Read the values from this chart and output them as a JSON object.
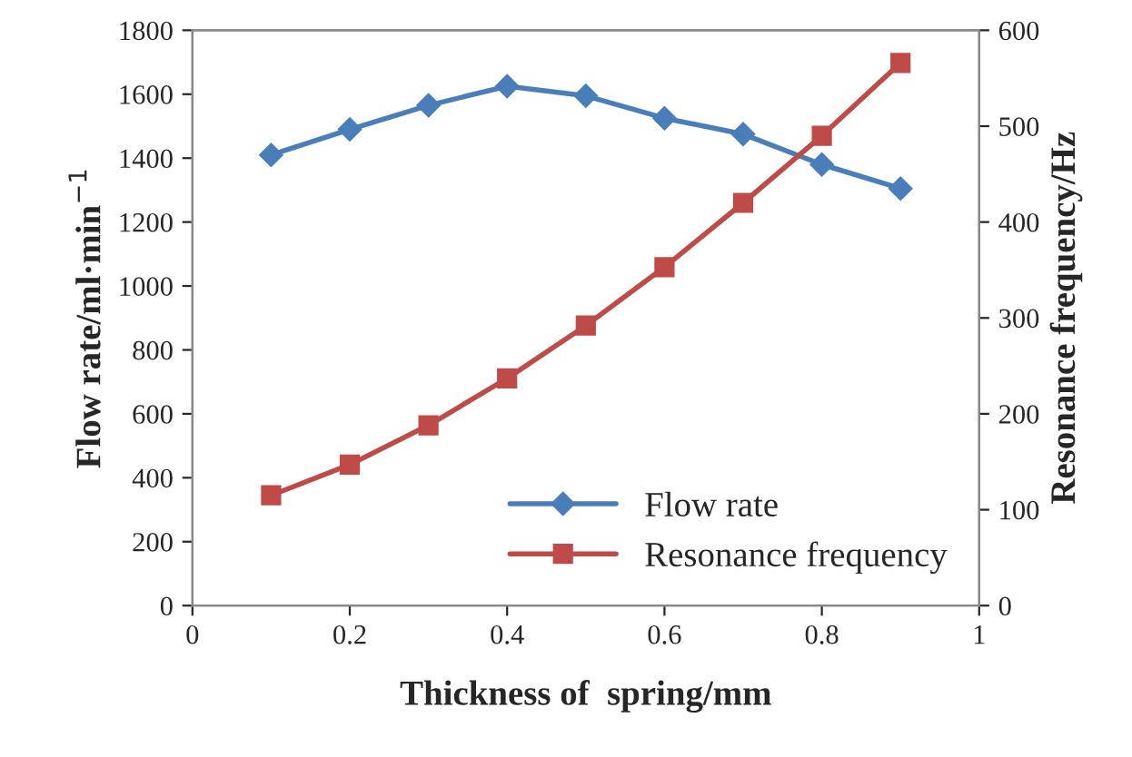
{
  "chart_data": {
    "type": "line",
    "xlabel": "Thickness of  spring/mm",
    "ylabel": "Flow rate/ml·min$^{−1}$",
    "y2label": "Resonance frequency/Hz",
    "x": [
      0.1,
      0.2,
      0.3,
      0.4,
      0.5,
      0.6,
      0.7,
      0.8,
      0.9
    ],
    "series": [
      {
        "name": "Flow rate",
        "color": "#4a7ebb",
        "marker": "diamond",
        "values": [
          1410,
          1490,
          1565,
          1625,
          1595,
          1525,
          1475,
          1380,
          1305
        ]
      },
      {
        "name": "Resonance frequency",
        "color": "#be4b48",
        "marker": "square",
        "axis": "y2",
        "values": [
          115,
          147,
          188,
          237,
          292,
          353,
          420,
          490,
          566
        ]
      }
    ],
    "xlim": [
      0,
      1
    ],
    "xticks": [
      0,
      0.2,
      0.4,
      0.6,
      0.8,
      1
    ],
    "ylim": [
      0,
      1800
    ],
    "yticks": [
      0,
      200,
      400,
      600,
      800,
      1000,
      1200,
      1400,
      1600,
      1800
    ],
    "y2lim": [
      0,
      600
    ],
    "y2ticks": [
      0,
      100,
      200,
      300,
      400,
      500,
      600
    ],
    "grid": false,
    "legend": "bottom right",
    "line_style": "solid"
  }
}
